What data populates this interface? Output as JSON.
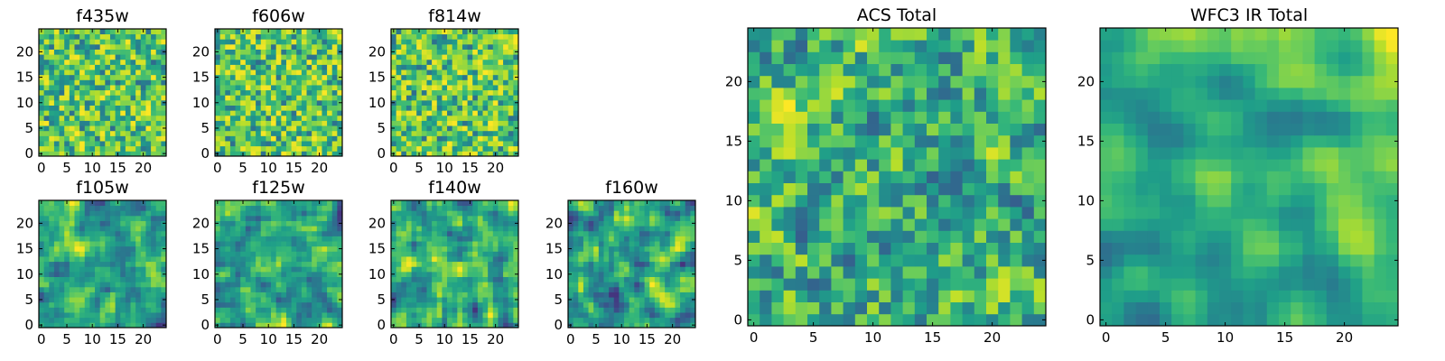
{
  "chart_data": [
    {
      "type": "heatmap",
      "title": "f435w",
      "grid_size": 25,
      "texture": "noise",
      "seed": 11,
      "xticks": [
        0,
        5,
        10,
        15,
        20
      ],
      "yticks": [
        0,
        5,
        10,
        15,
        20
      ],
      "xlim": [
        -0.5,
        24.5
      ],
      "ylim": [
        -0.5,
        24.5
      ],
      "colormap": "viridis"
    },
    {
      "type": "heatmap",
      "title": "f606w",
      "grid_size": 25,
      "texture": "noise",
      "seed": 23,
      "xticks": [
        0,
        5,
        10,
        15,
        20
      ],
      "yticks": [
        0,
        5,
        10,
        15,
        20
      ],
      "xlim": [
        -0.5,
        24.5
      ],
      "ylim": [
        -0.5,
        24.5
      ],
      "colormap": "viridis"
    },
    {
      "type": "heatmap",
      "title": "f814w",
      "grid_size": 25,
      "texture": "noise",
      "seed": 37,
      "xticks": [
        0,
        5,
        10,
        15,
        20
      ],
      "yticks": [
        0,
        5,
        10,
        15,
        20
      ],
      "xlim": [
        -0.5,
        24.5
      ],
      "ylim": [
        -0.5,
        24.5
      ],
      "colormap": "viridis"
    },
    {
      "type": "heatmap",
      "title": "f105w",
      "grid_size": 25,
      "texture": "smooth",
      "seed": 41,
      "xticks": [
        0,
        5,
        10,
        15,
        20
      ],
      "yticks": [
        0,
        5,
        10,
        15,
        20
      ],
      "xlim": [
        -0.5,
        24.5
      ],
      "ylim": [
        -0.5,
        24.5
      ],
      "colormap": "viridis"
    },
    {
      "type": "heatmap",
      "title": "f125w",
      "grid_size": 25,
      "texture": "smooth",
      "seed": 53,
      "xticks": [
        0,
        5,
        10,
        15,
        20
      ],
      "yticks": [
        0,
        5,
        10,
        15,
        20
      ],
      "xlim": [
        -0.5,
        24.5
      ],
      "ylim": [
        -0.5,
        24.5
      ],
      "colormap": "viridis"
    },
    {
      "type": "heatmap",
      "title": "f140w",
      "grid_size": 25,
      "texture": "smooth",
      "seed": 67,
      "xticks": [
        0,
        5,
        10,
        15,
        20
      ],
      "yticks": [
        0,
        5,
        10,
        15,
        20
      ],
      "xlim": [
        -0.5,
        24.5
      ],
      "ylim": [
        -0.5,
        24.5
      ],
      "colormap": "viridis"
    },
    {
      "type": "heatmap",
      "title": "f160w",
      "grid_size": 25,
      "texture": "smooth",
      "seed": 79,
      "xticks": [
        0,
        5,
        10,
        15,
        20
      ],
      "yticks": [
        0,
        5,
        10,
        15,
        20
      ],
      "xlim": [
        -0.5,
        24.5
      ],
      "ylim": [
        -0.5,
        24.5
      ],
      "colormap": "viridis"
    },
    {
      "type": "heatmap",
      "title": "ACS Total",
      "grid_size": 25,
      "texture": "mixed",
      "seed": 83,
      "xticks": [
        0,
        5,
        10,
        15,
        20
      ],
      "yticks": [
        0,
        5,
        10,
        15,
        20
      ],
      "xlim": [
        -0.5,
        24.5
      ],
      "ylim": [
        -0.5,
        24.5
      ],
      "colormap": "viridis"
    },
    {
      "type": "heatmap",
      "title": "WFC3 IR Total",
      "grid_size": 25,
      "texture": "gradient",
      "seed": 97,
      "xticks": [
        0,
        5,
        10,
        15,
        20
      ],
      "yticks": [
        0,
        5,
        10,
        15,
        20
      ],
      "xlim": [
        -0.5,
        24.5
      ],
      "ylim": [
        -0.5,
        24.5
      ],
      "colormap": "viridis"
    }
  ]
}
